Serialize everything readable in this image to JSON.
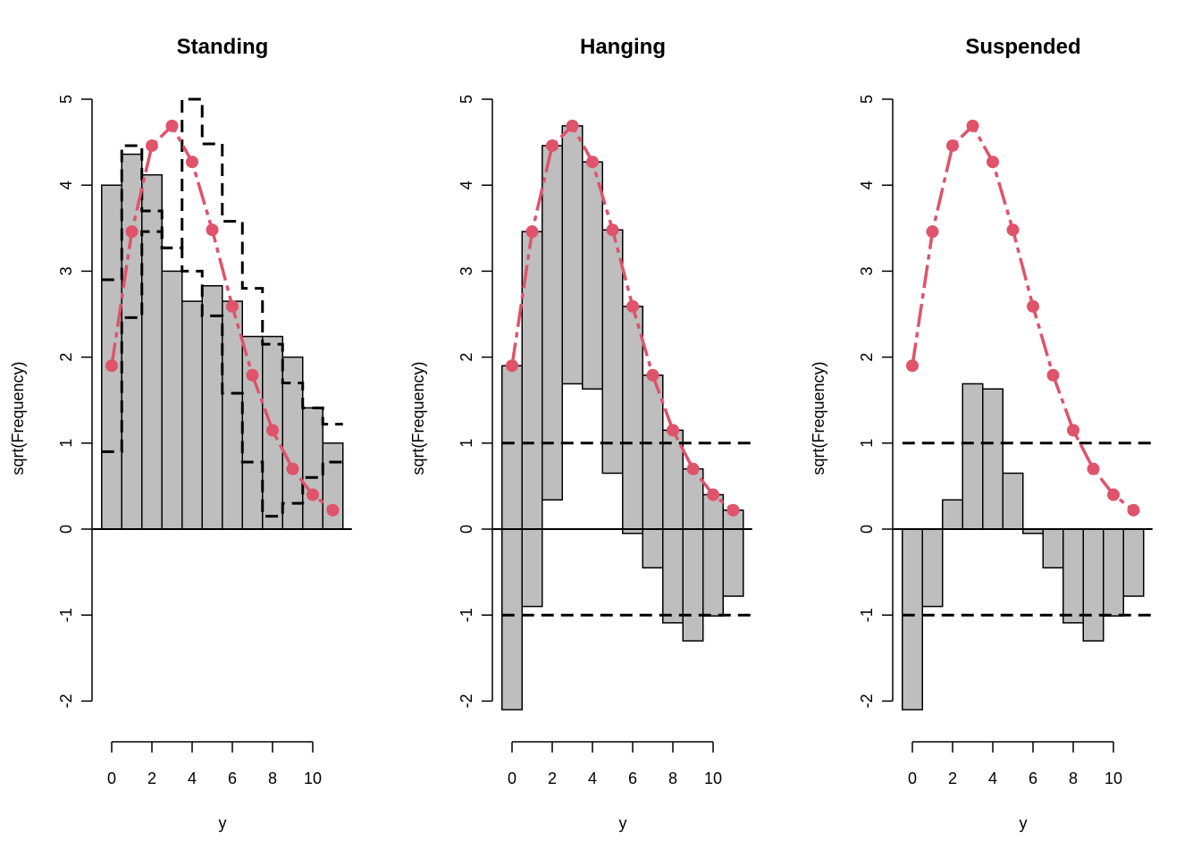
{
  "figure": {
    "fitted_color": "#DF536B",
    "bar_fill": "#BEBEBE"
  },
  "chart_data": [
    {
      "type": "rootogram-standing",
      "title": "Standing",
      "xlabel": "y",
      "ylabel": "sqrt(Frequency)",
      "ylim": [
        -2,
        5
      ],
      "yticks": [
        "-2",
        "-1",
        "0",
        "1",
        "2",
        "3",
        "4",
        "5"
      ],
      "xticks": [
        "0",
        "2",
        "4",
        "6",
        "8",
        "10"
      ],
      "x": [
        0,
        1,
        2,
        3,
        4,
        5,
        6,
        7,
        8,
        9,
        10,
        11
      ],
      "observed_sqrt": [
        4.0,
        4.36,
        4.12,
        3.0,
        2.65,
        2.83,
        2.65,
        2.24,
        2.24,
        2.0,
        1.41,
        1.0
      ],
      "expected_sqrt": [
        1.9,
        3.46,
        4.46,
        4.69,
        4.27,
        3.48,
        2.59,
        1.79,
        1.15,
        0.7,
        0.4,
        0.22
      ],
      "confidence_band": {
        "upper": [
          2.9,
          4.46,
          3.7,
          3.27,
          5.0,
          4.48,
          3.58,
          2.8,
          2.15,
          1.7,
          1.41,
          1.22
        ],
        "lower": [
          0.9,
          2.46,
          3.46,
          3.27,
          3.0,
          2.48,
          1.58,
          0.78,
          0.15,
          0.3,
          0.6,
          0.78
        ]
      }
    },
    {
      "type": "rootogram-hanging",
      "title": "Hanging",
      "xlabel": "y",
      "ylabel": "sqrt(Frequency)",
      "ylim": [
        -2,
        5
      ],
      "yticks": [
        "-2",
        "-1",
        "0",
        "1",
        "2",
        "3",
        "4",
        "5"
      ],
      "xticks": [
        "0",
        "2",
        "4",
        "6",
        "8",
        "10"
      ],
      "x": [
        0,
        1,
        2,
        3,
        4,
        5,
        6,
        7,
        8,
        9,
        10,
        11
      ],
      "expected_sqrt": [
        1.9,
        3.46,
        4.46,
        4.69,
        4.27,
        3.48,
        2.59,
        1.79,
        1.15,
        0.7,
        0.4,
        0.22
      ],
      "bar_bottoms": [
        -2.1,
        -0.9,
        0.34,
        1.69,
        1.63,
        0.65,
        -0.05,
        -0.45,
        -1.09,
        -1.3,
        -1.01,
        -0.78
      ],
      "reference_lines": [
        1,
        -1
      ]
    },
    {
      "type": "rootogram-suspended",
      "title": "Suspended",
      "xlabel": "y",
      "ylabel": "sqrt(Frequency)",
      "ylim": [
        -2,
        5
      ],
      "yticks": [
        "-2",
        "-1",
        "0",
        "1",
        "2",
        "3",
        "4",
        "5"
      ],
      "xticks": [
        "0",
        "2",
        "4",
        "6",
        "8",
        "10"
      ],
      "x": [
        0,
        1,
        2,
        3,
        4,
        5,
        6,
        7,
        8,
        9,
        10,
        11
      ],
      "expected_sqrt": [
        1.9,
        3.46,
        4.46,
        4.69,
        4.27,
        3.48,
        2.59,
        1.79,
        1.15,
        0.7,
        0.4,
        0.22
      ],
      "differences": [
        -2.1,
        -0.9,
        0.34,
        1.69,
        1.63,
        0.65,
        -0.05,
        -0.45,
        -1.09,
        -1.3,
        -1.01,
        -0.78
      ],
      "reference_lines": [
        1,
        -1
      ]
    }
  ]
}
